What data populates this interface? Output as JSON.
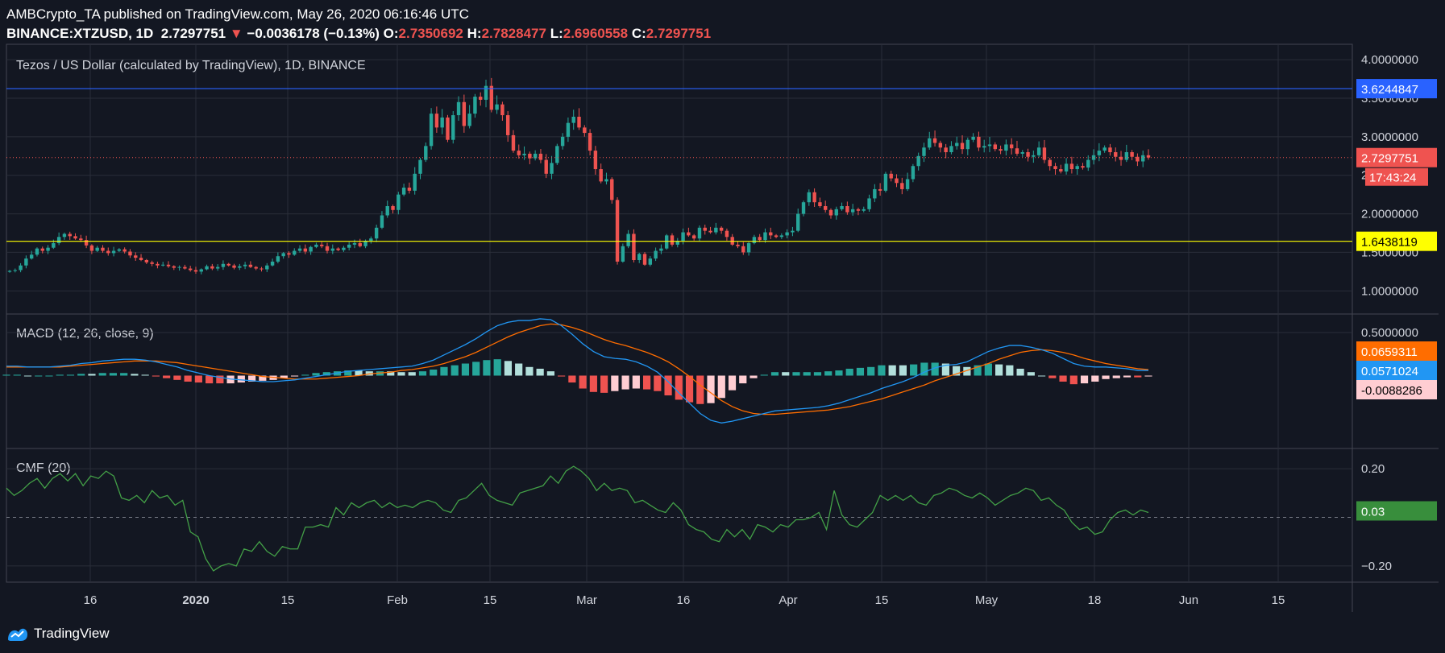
{
  "header": {
    "line1": "AMBCrypto_TA published on TradingView.com, May 26, 2020 06:16:46 UTC",
    "symbol": "BINANCE:XTZUSD, 1D",
    "last": "2.7297751",
    "change_arrow": "▼",
    "change": "−0.0036178 (−0.13%)",
    "o_label": "O:",
    "o_val": "2.7350692",
    "h_label": "H:",
    "h_val": "2.7828477",
    "l_label": "L:",
    "l_val": "2.6960558",
    "c_label": "C:",
    "c_val": "2.7297751"
  },
  "footer": {
    "brand": "TradingView"
  },
  "colors": {
    "up": "#26a69a",
    "down": "#ef5350",
    "macd": "#2196f3",
    "signal": "#ff6d00",
    "hist_up_strong": "#26a69a",
    "hist_up_weak": "#b2dfdb",
    "hist_dn_strong": "#ef5350",
    "hist_dn_weak": "#ffcdd2",
    "cmf": "#43a047",
    "resistance": "#2962ff",
    "support": "#ffff00",
    "grid": "#2a2e39"
  },
  "chart_data": [
    {
      "type": "candlestick",
      "title": "Tezos / US Dollar (calculated by TradingView), 1D, BINANCE",
      "x_ticks": [
        "16",
        "2020",
        "15",
        "Feb",
        "15",
        "Mar",
        "16",
        "Apr",
        "15",
        "May",
        "18",
        "Jun",
        "15"
      ],
      "y_ticks": [
        "1.0000000",
        "1.5000000",
        "2.0000000",
        "2.5000000",
        "3.0000000",
        "3.5000000",
        "4.0000000"
      ],
      "ylim": [
        0.7,
        4.2
      ],
      "resistance": {
        "value": 3.6244847,
        "label": "3.6244847"
      },
      "support": {
        "value": 1.6438119,
        "label": "1.6438119"
      },
      "last_price": {
        "value": 2.7297751,
        "label": "2.7297751",
        "countdown": "17:43:24"
      },
      "close": [
        1.26,
        1.27,
        1.33,
        1.42,
        1.47,
        1.55,
        1.52,
        1.56,
        1.62,
        1.7,
        1.74,
        1.71,
        1.68,
        1.66,
        1.59,
        1.52,
        1.56,
        1.52,
        1.49,
        1.52,
        1.54,
        1.51,
        1.46,
        1.43,
        1.4,
        1.37,
        1.35,
        1.33,
        1.34,
        1.32,
        1.3,
        1.31,
        1.29,
        1.27,
        1.25,
        1.28,
        1.32,
        1.29,
        1.31,
        1.35,
        1.33,
        1.3,
        1.32,
        1.34,
        1.31,
        1.29,
        1.28,
        1.33,
        1.38,
        1.45,
        1.49,
        1.47,
        1.52,
        1.55,
        1.51,
        1.57,
        1.6,
        1.58,
        1.52,
        1.55,
        1.53,
        1.56,
        1.6,
        1.62,
        1.58,
        1.65,
        1.68,
        1.82,
        1.98,
        2.1,
        2.05,
        2.25,
        2.34,
        2.3,
        2.52,
        2.7,
        2.88,
        3.3,
        3.12,
        3.25,
        2.96,
        3.28,
        3.45,
        3.14,
        3.3,
        3.52,
        3.48,
        3.66,
        3.35,
        3.42,
        3.28,
        3.02,
        2.82,
        2.76,
        2.78,
        2.72,
        2.78,
        2.7,
        2.52,
        2.66,
        2.88,
        3.0,
        3.18,
        3.26,
        3.12,
        3.05,
        2.82,
        2.58,
        2.42,
        2.45,
        2.18,
        1.38,
        1.58,
        1.74,
        1.4,
        1.48,
        1.34,
        1.42,
        1.52,
        1.55,
        1.72,
        1.6,
        1.65,
        1.76,
        1.72,
        1.68,
        1.82,
        1.78,
        1.76,
        1.82,
        1.78,
        1.7,
        1.6,
        1.58,
        1.5,
        1.62,
        1.7,
        1.66,
        1.76,
        1.72,
        1.7,
        1.72,
        1.76,
        1.78,
        2.0,
        2.15,
        2.28,
        2.15,
        2.1,
        2.05,
        1.98,
        2.06,
        2.1,
        2.02,
        2.06,
        2.04,
        2.06,
        2.2,
        2.32,
        2.3,
        2.52,
        2.46,
        2.4,
        2.32,
        2.45,
        2.62,
        2.75,
        2.86,
        2.98,
        2.92,
        2.86,
        2.8,
        2.88,
        2.92,
        2.84,
        2.96,
        3.0,
        2.86,
        2.88,
        2.9,
        2.84,
        2.82,
        2.9,
        2.85,
        2.78,
        2.8,
        2.74,
        2.76,
        2.86,
        2.7,
        2.62,
        2.58,
        2.55,
        2.65,
        2.58,
        2.62,
        2.6,
        2.7,
        2.76,
        2.82,
        2.86,
        2.8,
        2.74,
        2.7,
        2.8,
        2.74,
        2.68,
        2.76,
        2.73
      ]
    },
    {
      "type": "line",
      "title": "MACD (12, 26, close, 9)",
      "y_ticks": [
        "0.5000000"
      ],
      "ylim": [
        -0.8,
        0.65
      ],
      "values": {
        "signal": "0.0659311",
        "macd": "0.0571024",
        "histogram": "-0.0088286"
      },
      "macd_series": [
        0.11,
        0.11,
        0.1,
        0.1,
        0.1,
        0.11,
        0.12,
        0.14,
        0.15,
        0.17,
        0.18,
        0.19,
        0.19,
        0.18,
        0.16,
        0.13,
        0.1,
        0.06,
        0.03,
        0.0,
        -0.02,
        -0.04,
        -0.05,
        -0.06,
        -0.07,
        -0.07,
        -0.06,
        -0.05,
        -0.03,
        -0.01,
        0.01,
        0.03,
        0.05,
        0.06,
        0.07,
        0.08,
        0.09,
        0.1,
        0.11,
        0.14,
        0.18,
        0.24,
        0.3,
        0.36,
        0.43,
        0.51,
        0.58,
        0.62,
        0.64,
        0.64,
        0.66,
        0.65,
        0.58,
        0.48,
        0.37,
        0.28,
        0.22,
        0.2,
        0.19,
        0.16,
        0.11,
        0.04,
        -0.07,
        -0.2,
        -0.32,
        -0.44,
        -0.52,
        -0.55,
        -0.53,
        -0.5,
        -0.47,
        -0.44,
        -0.41,
        -0.4,
        -0.39,
        -0.38,
        -0.37,
        -0.35,
        -0.32,
        -0.28,
        -0.24,
        -0.2,
        -0.15,
        -0.11,
        -0.07,
        -0.02,
        0.04,
        0.09,
        0.12,
        0.13,
        0.16,
        0.22,
        0.28,
        0.32,
        0.35,
        0.35,
        0.33,
        0.3,
        0.26,
        0.2,
        0.14,
        0.11,
        0.1,
        0.1,
        0.09,
        0.08,
        0.06,
        0.06
      ],
      "signal_series": [
        0.1,
        0.1,
        0.1,
        0.1,
        0.1,
        0.1,
        0.11,
        0.12,
        0.13,
        0.14,
        0.15,
        0.16,
        0.17,
        0.17,
        0.17,
        0.16,
        0.15,
        0.13,
        0.11,
        0.09,
        0.07,
        0.05,
        0.03,
        0.01,
        -0.01,
        -0.02,
        -0.03,
        -0.04,
        -0.04,
        -0.04,
        -0.03,
        -0.02,
        -0.01,
        0.0,
        0.02,
        0.03,
        0.04,
        0.06,
        0.07,
        0.09,
        0.11,
        0.14,
        0.18,
        0.22,
        0.27,
        0.33,
        0.39,
        0.45,
        0.5,
        0.54,
        0.58,
        0.6,
        0.59,
        0.56,
        0.52,
        0.47,
        0.42,
        0.38,
        0.35,
        0.31,
        0.27,
        0.22,
        0.16,
        0.08,
        -0.01,
        -0.11,
        -0.2,
        -0.29,
        -0.36,
        -0.41,
        -0.44,
        -0.45,
        -0.45,
        -0.44,
        -0.43,
        -0.42,
        -0.41,
        -0.4,
        -0.38,
        -0.36,
        -0.33,
        -0.3,
        -0.27,
        -0.23,
        -0.19,
        -0.15,
        -0.11,
        -0.06,
        -0.02,
        0.02,
        0.06,
        0.1,
        0.14,
        0.19,
        0.23,
        0.27,
        0.29,
        0.3,
        0.29,
        0.27,
        0.24,
        0.2,
        0.17,
        0.14,
        0.12,
        0.1,
        0.08,
        0.07
      ]
    },
    {
      "type": "line",
      "title": "CMF (20)",
      "y_ticks": [
        "0.20",
        "0.03",
        "−0.20"
      ],
      "ylim": [
        -0.25,
        0.26
      ],
      "last": "0.03",
      "series": [
        0.12,
        0.09,
        0.11,
        0.14,
        0.16,
        0.12,
        0.16,
        0.18,
        0.15,
        0.18,
        0.13,
        0.17,
        0.16,
        0.19,
        0.17,
        0.08,
        0.07,
        0.09,
        0.06,
        0.11,
        0.08,
        0.09,
        0.05,
        0.07,
        -0.06,
        -0.08,
        -0.17,
        -0.22,
        -0.2,
        -0.19,
        -0.2,
        -0.13,
        -0.14,
        -0.1,
        -0.14,
        -0.16,
        -0.12,
        -0.13,
        -0.13,
        -0.04,
        -0.04,
        -0.03,
        -0.04,
        0.04,
        0.01,
        0.06,
        0.04,
        0.06,
        0.07,
        0.04,
        0.06,
        0.04,
        0.05,
        0.04,
        0.06,
        0.07,
        0.06,
        0.03,
        0.02,
        0.07,
        0.08,
        0.11,
        0.14,
        0.09,
        0.07,
        0.06,
        0.05,
        0.1,
        0.11,
        0.12,
        0.13,
        0.17,
        0.14,
        0.19,
        0.21,
        0.19,
        0.16,
        0.11,
        0.14,
        0.11,
        0.12,
        0.11,
        0.06,
        0.07,
        0.05,
        0.03,
        0.02,
        0.06,
        0.03,
        -0.03,
        -0.05,
        -0.06,
        -0.09,
        -0.1,
        -0.05,
        -0.08,
        -0.05,
        -0.09,
        -0.03,
        -0.04,
        -0.06,
        -0.03,
        -0.04,
        -0.01,
        -0.01,
        0.0,
        0.02,
        -0.05,
        0.11,
        0.01,
        -0.03,
        -0.04,
        -0.01,
        0.02,
        0.09,
        0.07,
        0.09,
        0.07,
        0.09,
        0.06,
        0.05,
        0.09,
        0.1,
        0.12,
        0.11,
        0.09,
        0.08,
        0.1,
        0.08,
        0.05,
        0.07,
        0.09,
        0.1,
        0.12,
        0.11,
        0.07,
        0.08,
        0.05,
        0.03,
        -0.02,
        -0.05,
        -0.04,
        -0.07,
        -0.06,
        -0.01,
        0.02,
        0.03,
        0.01,
        0.03,
        0.02
      ]
    }
  ]
}
